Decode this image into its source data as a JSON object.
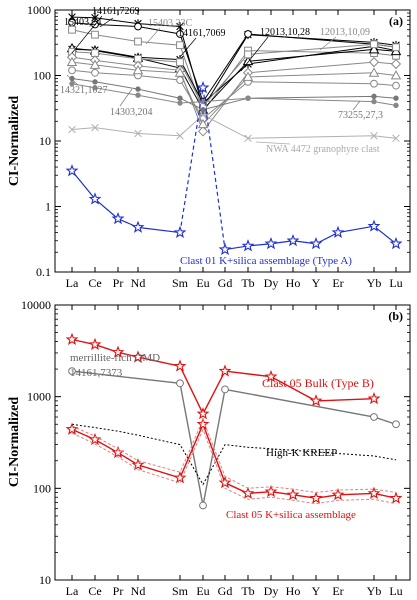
{
  "panels": [
    {
      "id": "a",
      "tag": "(a)",
      "ylabel": "CI-Normalized",
      "scale": "log",
      "ylim": [
        0.1,
        1000
      ],
      "yticks": [
        "0.1",
        "1",
        "10",
        "100",
        "1000"
      ]
    },
    {
      "id": "b",
      "tag": "(b)",
      "ylabel": "CI-Normalized",
      "scale": "log",
      "ylim": [
        10,
        10000
      ],
      "yticks": [
        "10",
        "100",
        "1000",
        "10000"
      ]
    }
  ],
  "labels_a": {
    "l15403_24": "15403,24",
    "l14161_7269": "14161,7269",
    "l15403_23c": "15403,23C",
    "l14161_7069": "14161,7069",
    "l12013_28": "12013,10,28",
    "l12013_09": "12013,10,09",
    "l14321": "14321,1027",
    "l14303": "14303,204",
    "l73255": "73255,27,3",
    "nwa": "NWA 4472 granophyre clast",
    "clast01": "Clast 01 K+silica assemblage (Type A)"
  },
  "labels_b": {
    "qmd1": "merrillite-rich QMD",
    "qmd2": "14161,7373",
    "bulk": "Clast 05 Bulk (Type B)",
    "kreep": "High-K KREEP",
    "ksil": "Clast 05 K+silica assemblage"
  },
  "chart_data": [
    {
      "type": "line",
      "panel": "a",
      "scale": "log",
      "ylabel": "CI-Normalized",
      "ylim": [
        0.1,
        1000
      ],
      "categories": [
        "La",
        "Ce",
        "Pr",
        "Nd",
        "Sm",
        "Eu",
        "Gd",
        "Tb",
        "Dy",
        "Ho",
        "Y",
        "Er",
        "Yb",
        "Lu"
      ],
      "series": [
        {
          "name": "15403,24",
          "color": "#000000",
          "marker": "asterisk",
          "points": [
            [
              "La",
              780
            ],
            [
              "Ce",
              760
            ],
            [
              "Nd",
              620
            ],
            [
              "Sm",
              560
            ],
            [
              "Eu",
              32
            ],
            [
              "Tb",
              420
            ],
            [
              "Yb",
              320
            ],
            [
              "Lu",
              290
            ]
          ]
        },
        {
          "name": "14161,7269",
          "color": "#000000",
          "marker": "circle",
          "points": [
            [
              "La",
              640
            ],
            [
              "Ce",
              600
            ],
            [
              "Nd",
              560
            ],
            [
              "Sm",
              430
            ],
            [
              "Eu",
              40
            ],
            [
              "Tb",
              430
            ],
            [
              "Yb",
              300
            ],
            [
              "Lu",
              270
            ]
          ]
        },
        {
          "name": "15403,23C",
          "color": "#888888",
          "marker": "square",
          "points": [
            [
              "La",
              500
            ],
            [
              "Ce",
              420
            ],
            [
              "Nd",
              330
            ],
            [
              "Sm",
              290
            ],
            [
              "Eu",
              28
            ],
            [
              "Tb",
              240
            ],
            [
              "Yb",
              220
            ],
            [
              "Lu",
              200
            ]
          ]
        },
        {
          "name": "14161,7069",
          "color": "#000000",
          "marker": "asterisk",
          "points": [
            [
              "La",
              250
            ],
            [
              "Ce",
              245
            ],
            [
              "Nd",
              190
            ],
            [
              "Sm",
              175
            ],
            [
              "Eu",
              38
            ],
            [
              "Tb",
              150
            ],
            [
              "Yb",
              280
            ],
            [
              "Lu",
              240
            ]
          ]
        },
        {
          "name": "12013,10,28",
          "color": "#000000",
          "marker": "triangle",
          "points": [
            [
              "La",
              260
            ],
            [
              "Ce",
              240
            ],
            [
              "Nd",
              185
            ],
            [
              "Sm",
              130
            ],
            [
              "Eu",
              30
            ],
            [
              "Tb",
              165
            ],
            [
              "Yb",
              250
            ],
            [
              "Lu",
              235
            ]
          ]
        },
        {
          "name": "12013,10,09",
          "color": "#888888",
          "marker": "square",
          "points": [
            [
              "La",
              230
            ],
            [
              "Ce",
              220
            ],
            [
              "Nd",
              180
            ],
            [
              "Sm",
              160
            ],
            [
              "Eu",
              34
            ],
            [
              "Tb",
              210
            ],
            [
              "Yb",
              300
            ],
            [
              "Lu",
              270
            ]
          ]
        },
        {
          "name": "",
          "color": "#888888",
          "marker": "diamond",
          "points": [
            [
              "La",
              190
            ],
            [
              "Ce",
              170
            ],
            [
              "Nd",
              140
            ],
            [
              "Sm",
              120
            ],
            [
              "Eu",
              14
            ],
            [
              "Tb",
              110
            ],
            [
              "Yb",
              160
            ],
            [
              "Lu",
              150
            ]
          ]
        },
        {
          "name": "",
          "color": "#888888",
          "marker": "circle",
          "points": [
            [
              "La",
              120
            ],
            [
              "Ce",
              110
            ],
            [
              "Nd",
              100
            ],
            [
              "Sm",
              85
            ],
            [
              "Eu",
              22
            ],
            [
              "Tb",
              80
            ],
            [
              "Yb",
              75
            ],
            [
              "Lu",
              70
            ]
          ]
        },
        {
          "name": "14303,204",
          "color": "#888888",
          "marker": "triangle",
          "points": [
            [
              "La",
              160
            ],
            [
              "Ce",
              145
            ],
            [
              "Nd",
              120
            ],
            [
              "Sm",
              110
            ],
            [
              "Eu",
              18
            ],
            [
              "Tb",
              95
            ],
            [
              "Yb",
              110
            ],
            [
              "Lu",
              100
            ]
          ]
        },
        {
          "name": "14321,1027",
          "color": "#777777",
          "marker": "dot",
          "points": [
            [
              "La",
              90
            ],
            [
              "Ce",
              80
            ],
            [
              "Nd",
              62
            ],
            [
              "Sm",
              45
            ],
            [
              "Eu",
              30
            ],
            [
              "Tb",
              45
            ],
            [
              "Yb",
              48
            ],
            [
              "Lu",
              45
            ]
          ]
        },
        {
          "name": "73255,27,3",
          "color": "#888888",
          "marker": "dot",
          "points": [
            [
              "La",
              75
            ],
            [
              "Ce",
              65
            ],
            [
              "Nd",
              50
            ],
            [
              "Sm",
              38
            ],
            [
              "Eu",
              40
            ],
            [
              "Tb",
              45
            ],
            [
              "Yb",
              40
            ],
            [
              "Lu",
              35
            ]
          ]
        },
        {
          "name": "NWA 4472 granophyre clast",
          "color": "#b0b0b0",
          "marker": "x",
          "points": [
            [
              "La",
              15
            ],
            [
              "Ce",
              16
            ],
            [
              "Nd",
              13
            ],
            [
              "Sm",
              12
            ],
            [
              "Eu",
              25
            ],
            [
              "Tb",
              11
            ],
            [
              "Yb",
              12
            ],
            [
              "Lu",
              11
            ]
          ]
        },
        {
          "name": "Clast 01 K+silica assemblage (Type A)",
          "color": "#1f2fd0",
          "marker": "star",
          "dashed_to_eu": true,
          "points": [
            [
              "La",
              3.5
            ],
            [
              "Ce",
              1.3
            ],
            [
              "Pr",
              0.65
            ],
            [
              "Nd",
              0.48
            ],
            [
              "Sm",
              0.4
            ],
            [
              "Eu",
              65
            ],
            [
              "Gd",
              0.22
            ],
            [
              "Tb",
              0.25
            ],
            [
              "Dy",
              0.27
            ],
            [
              "Ho",
              0.3
            ],
            [
              "Y",
              0.27
            ],
            [
              "Er",
              0.4
            ],
            [
              "Yb",
              0.5
            ],
            [
              "Lu",
              0.27
            ]
          ]
        }
      ]
    },
    {
      "type": "line",
      "panel": "b",
      "scale": "log",
      "ylabel": "CI-Normalized",
      "ylim": [
        10,
        10000
      ],
      "categories": [
        "La",
        "Ce",
        "Pr",
        "Nd",
        "Sm",
        "Eu",
        "Gd",
        "Tb",
        "Dy",
        "Ho",
        "Y",
        "Er",
        "Yb",
        "Lu"
      ],
      "series": [
        {
          "name": "Clast 05 Bulk (Type B)",
          "color": "#e01010",
          "marker": "star",
          "points": [
            [
              "La",
              4200
            ],
            [
              "Ce",
              3700
            ],
            [
              "Pr",
              3050
            ],
            [
              "Nd",
              2700
            ],
            [
              "Sm",
              2150
            ],
            [
              "Eu",
              650
            ],
            [
              "Gd",
              1900
            ],
            [
              "Dy",
              1650
            ],
            [
              "Y",
              900
            ],
            [
              "Yb",
              950
            ]
          ]
        },
        {
          "name": "merrillite-rich QMD 14161,7373",
          "color": "#777777",
          "marker": "circle",
          "points": [
            [
              "La",
              1900
            ],
            [
              "Sm",
              1400
            ],
            [
              "Eu",
              65
            ],
            [
              "Gd",
              1200
            ],
            [
              "Yb",
              600
            ],
            [
              "Lu",
              500
            ]
          ]
        },
        {
          "name": "High-K KREEP",
          "color": "#000000",
          "marker": "none",
          "dashed": true,
          "points": [
            [
              "La",
              500
            ],
            [
              "Ce",
              460
            ],
            [
              "Pr",
              420
            ],
            [
              "Nd",
              380
            ],
            [
              "Sm",
              300
            ],
            [
              "Eu",
              110
            ],
            [
              "Gd",
              300
            ],
            [
              "Tb",
              280
            ],
            [
              "Dy",
              270
            ],
            [
              "Ho",
              260
            ],
            [
              "Y",
              250
            ],
            [
              "Er",
              240
            ],
            [
              "Yb",
              225
            ],
            [
              "Lu",
              205
            ]
          ]
        },
        {
          "name": "Clast 05 K+silica assemblage",
          "color": "#e01010",
          "marker": "star",
          "points": [
            [
              "La",
              440
            ],
            [
              "Ce",
              340
            ],
            [
              "Pr",
              245
            ],
            [
              "Nd",
              180
            ],
            [
              "Sm",
              130
            ],
            [
              "Eu",
              500
            ],
            [
              "Gd",
              115
            ],
            [
              "Tb",
              88
            ],
            [
              "Dy",
              92
            ],
            [
              "Ho",
              85
            ],
            [
              "Y",
              78
            ],
            [
              "Er",
              85
            ],
            [
              "Yb",
              88
            ],
            [
              "Lu",
              78
            ]
          ]
        },
        {
          "name": "",
          "color": "#e08080",
          "marker": "none",
          "dashed": true,
          "points": [
            [
              "La",
              480
            ],
            [
              "Ce",
              370
            ],
            [
              "Pr",
              270
            ],
            [
              "Nd",
              200
            ],
            [
              "Sm",
              150
            ],
            [
              "Eu",
              560
            ],
            [
              "Gd",
              135
            ],
            [
              "Tb",
              100
            ],
            [
              "Dy",
              104
            ],
            [
              "Ho",
              98
            ],
            [
              "Y",
              90
            ],
            [
              "Er",
              96
            ],
            [
              "Yb",
              98
            ],
            [
              "Lu",
              90
            ]
          ]
        },
        {
          "name": "",
          "color": "#e08080",
          "marker": "none",
          "dashed": true,
          "points": [
            [
              "La",
              400
            ],
            [
              "Ce",
              305
            ],
            [
              "Pr",
              220
            ],
            [
              "Nd",
              160
            ],
            [
              "Sm",
              115
            ],
            [
              "Eu",
              440
            ],
            [
              "Gd",
              100
            ],
            [
              "Tb",
              76
            ],
            [
              "Dy",
              80
            ],
            [
              "Ho",
              74
            ],
            [
              "Y",
              68
            ],
            [
              "Er",
              74
            ],
            [
              "Yb",
              76
            ],
            [
              "Lu",
              68
            ]
          ]
        }
      ]
    }
  ]
}
